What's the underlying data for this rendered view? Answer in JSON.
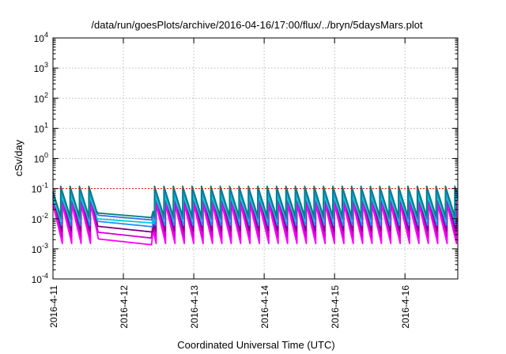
{
  "chart_data": {
    "type": "line",
    "title": "/data/run/goesPlots/archive/2016-04-16/17:00/flux/../bryn/5daysMars.plot",
    "xlabel": "Coordinated Universal Time (UTC)",
    "ylabel": "cSv/day",
    "yscale": "log",
    "ylim": [
      0.0001,
      10000
    ],
    "xlim": [
      "2016-04-11",
      "2016-04-16 18:00"
    ],
    "grid": true,
    "legend": "none",
    "x_ticks": [
      "2016-4-11",
      "2016-4-12",
      "2016-4-13",
      "2016-4-14",
      "2016-4-15",
      "2016-4-16"
    ],
    "y_ticks": [
      {
        "value": 0.0001,
        "base": "10",
        "exp": "-4"
      },
      {
        "value": 0.001,
        "base": "10",
        "exp": "-3"
      },
      {
        "value": 0.01,
        "base": "10",
        "exp": "-2"
      },
      {
        "value": 0.1,
        "base": "10",
        "exp": "-1"
      },
      {
        "value": 1,
        "base": "10",
        "exp": "0"
      },
      {
        "value": 10,
        "base": "10",
        "exp": "1"
      },
      {
        "value": 100,
        "base": "10",
        "exp": "2"
      },
      {
        "value": 1000,
        "base": "10",
        "exp": "3"
      },
      {
        "value": 10000,
        "base": "10",
        "exp": "4"
      }
    ],
    "reference_line": {
      "value": 0.1,
      "color": "#ff0000"
    },
    "pattern": {
      "description_of_shape": "repeating sawtooth",
      "period_days": 0.1333,
      "gap": [
        "2016-04-11 15:00",
        "2016-04-12 10:00"
      ]
    },
    "series": [
      {
        "color": "#ff00ff",
        "peak": 0.03,
        "trough": 0.0015
      },
      {
        "color": "#d400d4",
        "peak": 0.05,
        "trough": 0.0025
      },
      {
        "color": "#800080",
        "peak": 0.07,
        "trough": 0.004
      },
      {
        "color": "#1e90ff",
        "peak": 0.09,
        "trough": 0.006
      },
      {
        "color": "#00ced1",
        "peak": 0.06,
        "trough": 0.008
      },
      {
        "color": "#4169e1",
        "peak": 0.11,
        "trough": 0.01
      },
      {
        "color": "#008080",
        "peak": 0.12,
        "trough": 0.012
      }
    ]
  }
}
